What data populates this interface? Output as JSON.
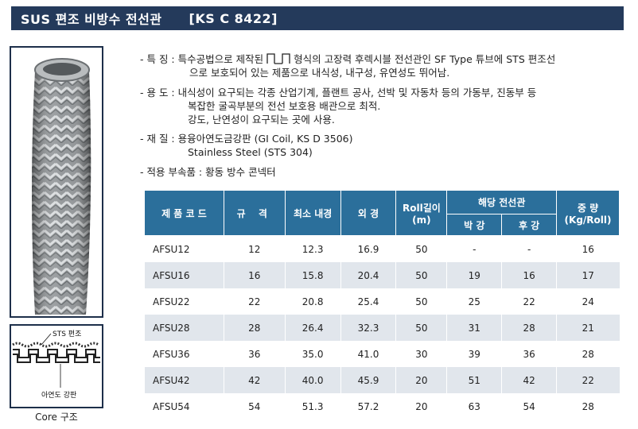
{
  "header": {
    "title": "SUS 편조 비방수 전선관",
    "code": "[KS C 8422]"
  },
  "descriptions": {
    "feature": {
      "label": "- 특 징 :",
      "line1_pre": "특수공법으로 제작된",
      "line1_post": "형식의 고장력 후렉시블 전선관인 SF Type 튜브에 STS 편조선",
      "line2": "으로 보호되어 있는 제품으로 내식성, 내구성, 유연성도 뛰어남."
    },
    "usage": {
      "label": "- 용 도 :",
      "line1": "내식성이 요구되는 각종 산업기계, 플랜트 공사, 선박 및 자동차 등의 가동부, 진동부 등",
      "line2": "복잡한 굴곡부분의 전선 보호용 배관으로 최적.",
      "line3": "강도, 난연성이 요구되는 곳에 사용."
    },
    "material": {
      "label": "- 재 질 :",
      "line1": "용융아연도금강판 (GI Coil, KS D 3506)",
      "line2": "Stainless Steel (STS 304)"
    },
    "fitting": {
      "label": "- 적용 부속품 :",
      "text": "황동 방수 콘넥터"
    }
  },
  "diagram": {
    "label_top": "STS 편조",
    "label_bottom": "아연도 강판",
    "caption": "Core 구조"
  },
  "table": {
    "headers": {
      "code": "제 품 코 드",
      "size": "규    격",
      "min_inner": "최소 내경",
      "outer": "외 경",
      "roll_length": "Roll길이",
      "roll_unit": "(m)",
      "conduit": "해당 전선관",
      "thin": "박 강",
      "thick": "후 강",
      "weight": "중 량",
      "weight_unit": "(Kg/Roll)"
    },
    "rows": [
      {
        "code": "AFSU12",
        "size": "12",
        "min_inner": "12.3",
        "outer": "16.9",
        "roll": "50",
        "thin": "-",
        "thick": "-",
        "weight": "16"
      },
      {
        "code": "AFSU16",
        "size": "16",
        "min_inner": "15.8",
        "outer": "20.4",
        "roll": "50",
        "thin": "19",
        "thick": "16",
        "weight": "17"
      },
      {
        "code": "AFSU22",
        "size": "22",
        "min_inner": "20.8",
        "outer": "25.4",
        "roll": "50",
        "thin": "25",
        "thick": "22",
        "weight": "24"
      },
      {
        "code": "AFSU28",
        "size": "28",
        "min_inner": "26.4",
        "outer": "32.3",
        "roll": "50",
        "thin": "31",
        "thick": "28",
        "weight": "21"
      },
      {
        "code": "AFSU36",
        "size": "36",
        "min_inner": "35.0",
        "outer": "41.0",
        "roll": "30",
        "thin": "39",
        "thick": "36",
        "weight": "28"
      },
      {
        "code": "AFSU42",
        "size": "42",
        "min_inner": "40.0",
        "outer": "45.9",
        "roll": "20",
        "thin": "51",
        "thick": "42",
        "weight": "22"
      },
      {
        "code": "AFSU54",
        "size": "54",
        "min_inner": "51.3",
        "outer": "57.2",
        "roll": "20",
        "thin": "63",
        "thick": "54",
        "weight": "28"
      }
    ]
  },
  "colors": {
    "title_bg": "#243a5b",
    "table_header_bg": "#2b6f9b",
    "row_alt_bg": "#e1e6ec"
  }
}
